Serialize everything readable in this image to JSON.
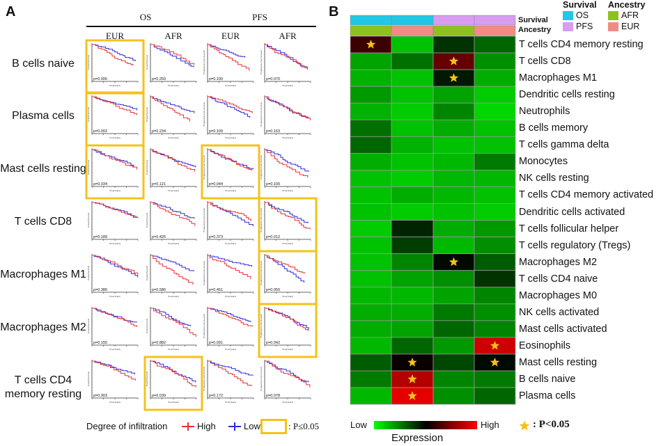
{
  "panel_a": {
    "letter": "A",
    "group_labels": [
      "OS",
      "PFS"
    ],
    "column_labels": [
      "EUR",
      "AFR",
      "EUR",
      "AFR"
    ],
    "rows": [
      {
        "label": "B cells naive",
        "pvalues": [
          "p=0.006",
          "p=0.250",
          "p=0.100",
          "p=0.070"
        ],
        "significant": [
          true,
          false,
          false,
          false
        ]
      },
      {
        "label": "Plasma cells",
        "pvalues": [
          "p=0.002",
          "p=0.234",
          "p=0.109",
          "p=0.163"
        ],
        "significant": [
          true,
          false,
          false,
          false
        ]
      },
      {
        "label": "Mast cells resting",
        "pvalues": [
          "p=0.034",
          "p=0.121",
          "p=0.044",
          "p=0.100"
        ],
        "significant": [
          true,
          false,
          true,
          false
        ]
      },
      {
        "label": "T cells CD8",
        "pvalues": [
          "p=0.189",
          "p=0.426",
          "p=0.373",
          "p=0.012"
        ],
        "significant": [
          false,
          false,
          false,
          true
        ]
      },
      {
        "label": "Macrophages M1",
        "pvalues": [
          "p=0.386",
          "p=0.586",
          "p=0.451",
          "p=0.050"
        ],
        "significant": [
          false,
          false,
          false,
          true
        ]
      },
      {
        "label": "Macrophages M2",
        "pvalues": [
          "p=0.155",
          "p=0.882",
          "p=0.091",
          "p=0.042"
        ],
        "significant": [
          false,
          false,
          false,
          true
        ]
      },
      {
        "label": "T cells CD4 memory resting",
        "pvalues": [
          "p=0.903",
          "p=0.039",
          "p=0.172",
          "p=0.078"
        ],
        "significant": [
          false,
          true,
          false,
          false
        ]
      }
    ],
    "plot_text": {
      "y_os": "Overall Survival",
      "y_pfs": "Progression-Free Survival",
      "x": "Time(Years)"
    },
    "legend": {
      "title": "Degree of infiltration",
      "high": "High",
      "low": "Low",
      "sig": ":  P≤0.05"
    },
    "colors": {
      "high": "#e83030",
      "low": "#2a2ad8",
      "highlight": "#f5c21b"
    }
  },
  "panel_b": {
    "letter": "B",
    "track_labels": [
      "Survival",
      "Ancestry"
    ],
    "survival": [
      "OS",
      "OS",
      "PFS",
      "PFS"
    ],
    "ancestry": [
      "AFR",
      "EUR",
      "AFR",
      "EUR"
    ],
    "legend_survival": {
      "title": "Survival",
      "items": [
        {
          "label": "OS",
          "color": "#22c7e6"
        },
        {
          "label": "PFS",
          "color": "#d89cf0"
        }
      ]
    },
    "legend_ancestry": {
      "title": "Ancestry",
      "items": [
        {
          "label": "AFR",
          "color": "#8ec21a"
        },
        {
          "label": "EUR",
          "color": "#f08c84"
        }
      ]
    },
    "cells": [
      "T cells CD4 memory resting",
      "T cells CD8",
      "Macrophages M1",
      "Dendritic cells resting",
      "Neutrophils",
      "B cells memory",
      "T cells gamma delta",
      "Monocytes",
      "NK cells resting",
      "T cells CD4 memory activated",
      "Dendritic cells activated",
      "T cells follicular helper",
      "T cells regulatory (Tregs)",
      "Macrophages M2",
      "T cells CD4 naive",
      "Macrophages M0",
      "NK cells activated",
      "Mast cells activated",
      "Eosinophils",
      "Mast cells resting",
      "B cells naive",
      "Plasma cells"
    ],
    "expression": [
      [
        0.62,
        0.12,
        0.4,
        0.3
      ],
      [
        0.18,
        0.28,
        0.7,
        0.22
      ],
      [
        0.15,
        0.12,
        0.45,
        0.16
      ],
      [
        0.2,
        0.12,
        0.18,
        0.1
      ],
      [
        0.15,
        0.1,
        0.24,
        0.08
      ],
      [
        0.28,
        0.12,
        0.16,
        0.12
      ],
      [
        0.3,
        0.15,
        0.12,
        0.12
      ],
      [
        0.16,
        0.12,
        0.14,
        0.26
      ],
      [
        0.12,
        0.1,
        0.14,
        0.14
      ],
      [
        0.12,
        0.16,
        0.14,
        0.12
      ],
      [
        0.12,
        0.1,
        0.12,
        0.1
      ],
      [
        0.1,
        0.43,
        0.16,
        0.2
      ],
      [
        0.12,
        0.38,
        0.14,
        0.22
      ],
      [
        0.12,
        0.24,
        0.48,
        0.32
      ],
      [
        0.12,
        0.18,
        0.22,
        0.4
      ],
      [
        0.14,
        0.14,
        0.18,
        0.24
      ],
      [
        0.16,
        0.16,
        0.26,
        0.22
      ],
      [
        0.16,
        0.18,
        0.3,
        0.24
      ],
      [
        0.14,
        0.3,
        0.2,
        0.9
      ],
      [
        0.32,
        0.52,
        0.36,
        0.48
      ],
      [
        0.26,
        0.85,
        0.24,
        0.26
      ],
      [
        0.14,
        0.95,
        0.22,
        0.3
      ]
    ],
    "stars": [
      [
        0,
        0
      ],
      [
        1,
        2
      ],
      [
        2,
        2
      ],
      [
        13,
        2
      ],
      [
        18,
        3
      ],
      [
        19,
        1
      ],
      [
        19,
        3
      ],
      [
        20,
        1
      ],
      [
        21,
        1
      ]
    ],
    "colorbar": {
      "low": "Low",
      "high": "High",
      "title": "Expression"
    },
    "sig_legend": ": P<0.05"
  }
}
